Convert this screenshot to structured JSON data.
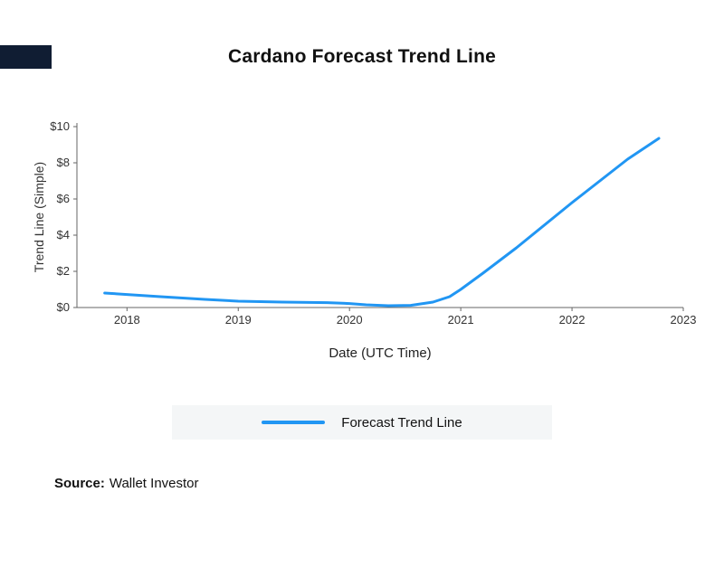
{
  "page": {
    "title": "Cardano Forecast Trend Line",
    "corner_color": "#101d33"
  },
  "legend": {
    "label": "Forecast Trend Line",
    "line_color": "#2196f3",
    "background": "#f4f6f7"
  },
  "source": {
    "label": "Source:",
    "value": "Wallet Investor"
  },
  "chart_data": {
    "type": "line",
    "title": "Cardano Forecast Trend Line",
    "xlabel": "Date (UTC Time)",
    "ylabel": "Trend Line (Simple)",
    "x_ticks": [
      2018,
      2019,
      2020,
      2021,
      2022,
      2023
    ],
    "y_ticks": [
      0,
      2,
      4,
      6,
      8,
      10
    ],
    "y_tick_labels": [
      "$0",
      "$2",
      "$4",
      "$6",
      "$8",
      "$10"
    ],
    "xlim": [
      2017.55,
      2023
    ],
    "ylim": [
      0,
      10
    ],
    "grid": false,
    "legend_position": "bottom",
    "axis_color": "#666666",
    "series": [
      {
        "name": "Forecast Trend Line",
        "color": "#2196f3",
        "x": [
          2017.8,
          2018.0,
          2018.3,
          2018.7,
          2019.0,
          2019.4,
          2019.8,
          2020.0,
          2020.15,
          2020.35,
          2020.55,
          2020.75,
          2020.9,
          2021.0,
          2021.2,
          2021.5,
          2022.0,
          2022.5,
          2022.78
        ],
        "y": [
          0.8,
          0.72,
          0.6,
          0.45,
          0.35,
          0.3,
          0.27,
          0.22,
          0.15,
          0.1,
          0.12,
          0.3,
          0.6,
          1.0,
          1.9,
          3.3,
          5.8,
          8.2,
          9.35
        ]
      }
    ]
  }
}
